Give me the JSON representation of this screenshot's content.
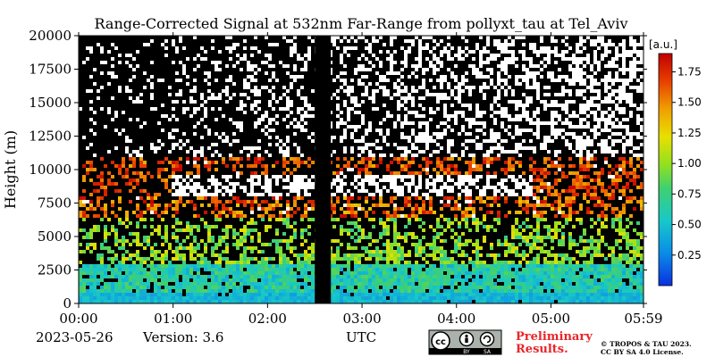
{
  "chart_data": {
    "type": "heatmap",
    "title": "Range-Corrected Signal at 532nm Far-Range from pollyxt_tau at Tel_Aviv",
    "xlabel": "UTC",
    "ylabel": "Height (m)",
    "x_tick_labels": [
      "00:00",
      "01:00",
      "02:00",
      "03:00",
      "04:00",
      "05:00",
      "05:59"
    ],
    "x_range_hours": [
      0,
      5.98
    ],
    "y_ticks": [
      0,
      2500,
      5000,
      7500,
      10000,
      12500,
      15000,
      17500,
      20000
    ],
    "y_tick_labels": [
      "0",
      "2500",
      "5000",
      "7500",
      "10000",
      "12500",
      "15000",
      "17500",
      "20000"
    ],
    "ylim": [
      0,
      20000
    ],
    "colorbar": {
      "label": "[a.u.]",
      "range": [
        0,
        1.9
      ],
      "ticks": [
        0.25,
        0.5,
        0.75,
        1.0,
        1.25,
        1.5,
        1.75
      ],
      "tick_labels": [
        "0.25",
        "0.50",
        "0.75",
        "1.00",
        "1.25",
        "1.50",
        "1.75"
      ],
      "colormap": "jet-like",
      "colors": [
        "#1030d0",
        "#1098e0",
        "#20c8b0",
        "#60d040",
        "#b8e020",
        "#f0e000",
        "#f09000",
        "#e02000",
        "#a00000"
      ]
    },
    "data_gap_hours": [
      2.5,
      2.67
    ],
    "features": [
      {
        "description": "dense aerosol layer",
        "height_range_m": [
          0,
          3000
        ],
        "value_approx": 0.6
      },
      {
        "description": "lofted aerosol layer",
        "height_range_m": [
          3000,
          7500
        ],
        "value_approx": 1.0
      },
      {
        "description": "cirrus cloud layer",
        "height_range_m": [
          7500,
          11000
        ],
        "value_approx": 1.9
      }
    ]
  },
  "footer": {
    "date": "2023-05-26",
    "version": "Version: 3.6",
    "xlabel": "UTC",
    "preliminary_1": "Preliminary",
    "preliminary_2": "Results.",
    "copyright": "© TROPOS & TAU 2023.",
    "license": "CC BY SA 4.0 License.",
    "badge_cc": "cc",
    "badge_by": "BY",
    "badge_sa": "SA"
  }
}
